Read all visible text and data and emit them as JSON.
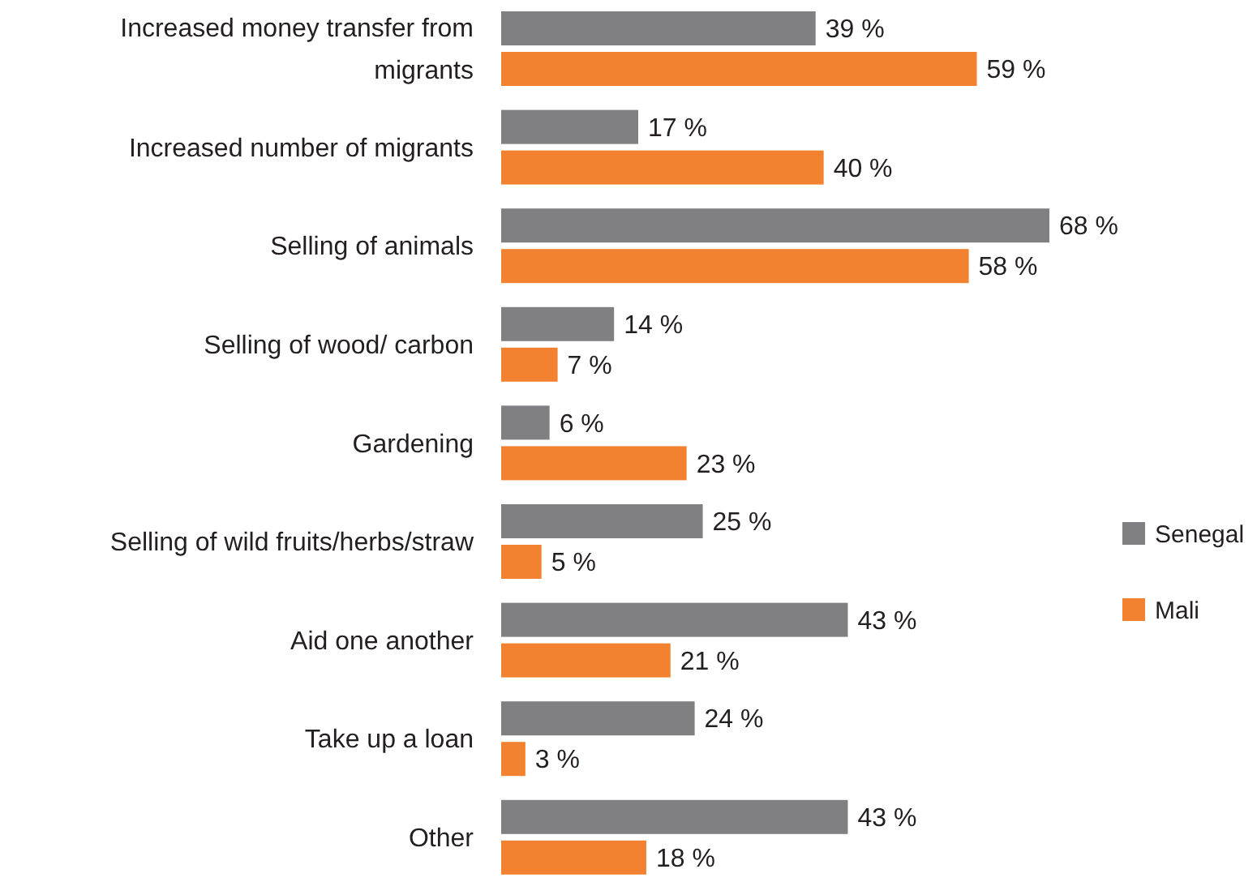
{
  "chart_data": {
    "type": "bar",
    "orientation": "horizontal",
    "categories": [
      "Increased money transfer from migrants",
      "Increased number of migrants",
      "Selling of animals",
      "Selling of wood/ carbon",
      "Gardening",
      "Selling of wild fruits/herbs/straw",
      "Aid one another",
      "Take up a loan",
      "Other"
    ],
    "series": [
      {
        "name": "Senegal",
        "color": "#808083",
        "values": [
          39,
          17,
          68,
          14,
          6,
          25,
          43,
          24,
          43
        ],
        "value_labels": [
          "39 %",
          "17 %",
          "68 %",
          "14 %",
          "6 %",
          "25 %",
          "43 %",
          "24 %",
          "43 %"
        ]
      },
      {
        "name": "Mali",
        "color": "#f28230",
        "values": [
          59,
          40,
          58,
          7,
          23,
          5,
          21,
          3,
          18
        ],
        "value_labels": [
          "59 %",
          "40 %",
          "58 %",
          "7 %",
          "23 %",
          "5 %",
          "21 %",
          "3 %",
          "18 %"
        ]
      }
    ],
    "legend": "right"
  }
}
